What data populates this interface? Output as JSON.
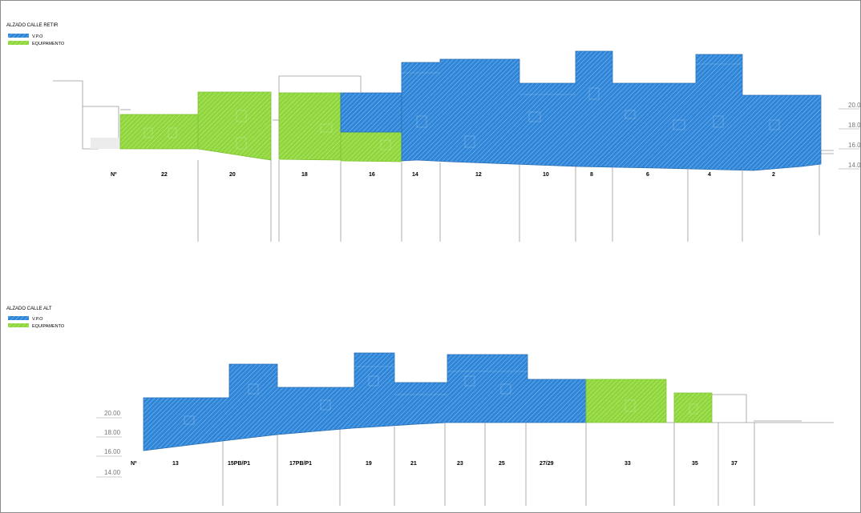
{
  "colors": {
    "vpo": "#2f86d8",
    "equip": "#8ed63a",
    "outline": "#9a9a9a"
  },
  "retir": {
    "title": "ALZADO CALLE RETIR",
    "legend": [
      {
        "label": "V.P.O",
        "key": "vpo"
      },
      {
        "label": "EQUIPAMENTO",
        "key": "equip"
      }
    ],
    "numbers": [
      "Nº",
      "22",
      "20",
      "18",
      "16",
      "14",
      "12",
      "10",
      "8",
      "6",
      "4",
      "2"
    ],
    "levels": [
      "20.00",
      "18.00",
      "16.00",
      "14.00"
    ]
  },
  "alt": {
    "title": "ALZADO CALLE ALT",
    "legend": [
      {
        "label": "V.P.O",
        "key": "vpo"
      },
      {
        "label": "EQUIPAMENTO",
        "key": "equip"
      }
    ],
    "numbers": [
      "Nº",
      "13",
      "15PB/P1",
      "17PB/P1",
      "19",
      "21",
      "23",
      "25",
      "27/29",
      "33",
      "35",
      "37"
    ],
    "levels": [
      "20.00",
      "18.00",
      "16.00",
      "14.00"
    ]
  }
}
